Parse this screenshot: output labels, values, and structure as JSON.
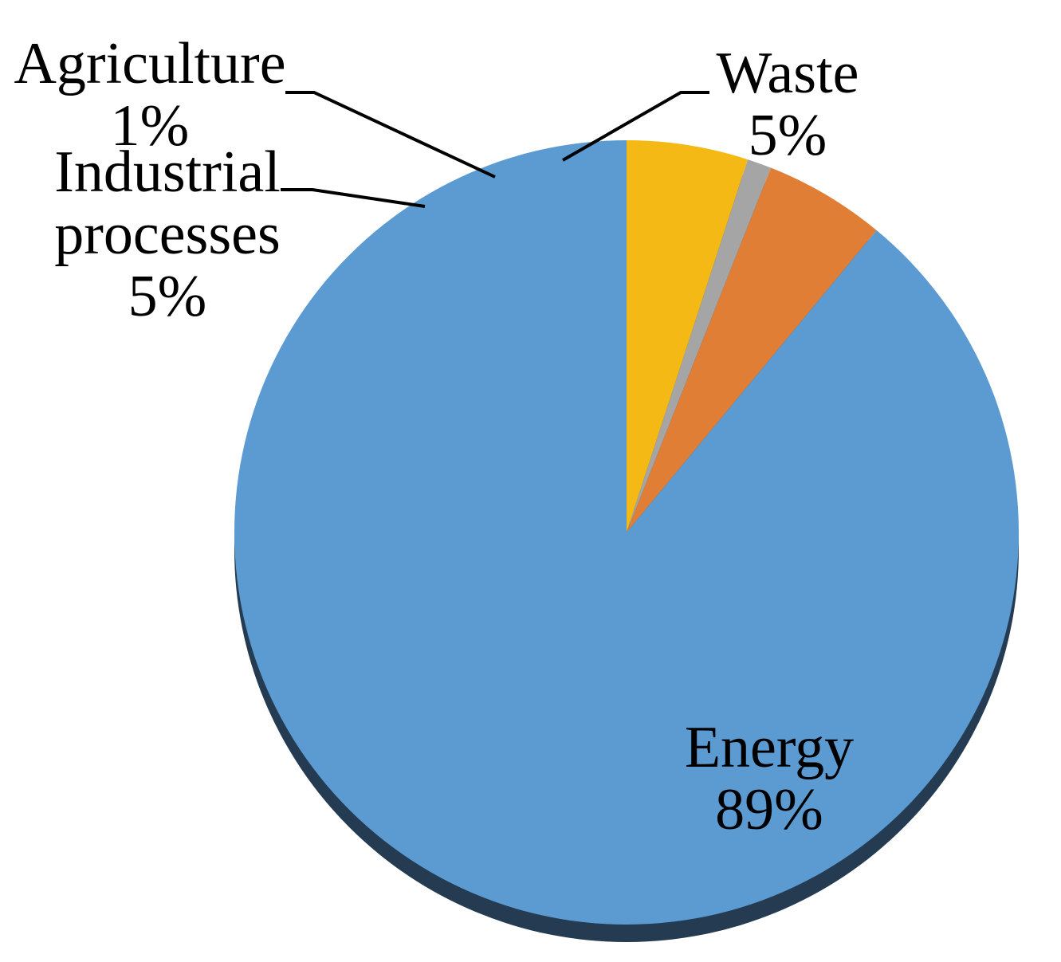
{
  "chart_data": {
    "type": "pie",
    "categories": [
      "Energy",
      "Industrial processes",
      "Agriculture",
      "Waste"
    ],
    "values": [
      89,
      5,
      1,
      5
    ],
    "labels": [
      {
        "name_lines": [
          "Energy"
        ],
        "pct": "89%"
      },
      {
        "name_lines": [
          "Industrial",
          "processes"
        ],
        "pct": "5%"
      },
      {
        "name_lines": [
          "Agriculture"
        ],
        "pct": "1%"
      },
      {
        "name_lines": [
          "Waste"
        ],
        "pct": "5%"
      }
    ],
    "colors": [
      "#5b9bd1",
      "#e17e35",
      "#a5a5a5",
      "#f4b914"
    ],
    "shadow_color": "#243b52",
    "start": "12 o'clock",
    "direction": "counterclockwise",
    "legend": "none",
    "data_labels": "category-name and percentage"
  }
}
